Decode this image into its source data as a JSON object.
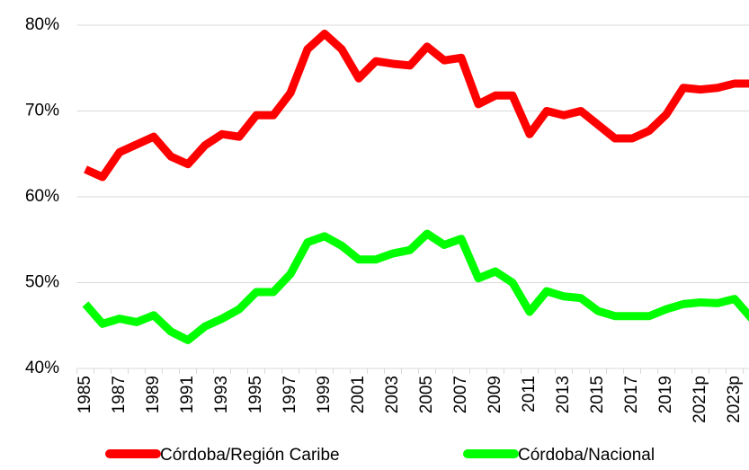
{
  "chart_data": {
    "type": "line",
    "categories": [
      "1985",
      null,
      "1987",
      null,
      "1989",
      null,
      "1991",
      null,
      "1993",
      null,
      "1995",
      null,
      "1997",
      null,
      "1999",
      null,
      "2001",
      null,
      "2003",
      null,
      "2005",
      null,
      "2007",
      null,
      "2009",
      null,
      "2011",
      null,
      "2013",
      null,
      "2015",
      null,
      "2017",
      null,
      "2019",
      null,
      "2021p",
      null,
      "2023p",
      null
    ],
    "series": [
      {
        "name": "Córdoba/Región Caribe",
        "color": "#ff0000",
        "values": [
          63.2,
          62.3,
          65.2,
          66.1,
          67.0,
          64.7,
          63.8,
          66.0,
          67.3,
          67.0,
          69.5,
          69.5,
          72.1,
          77.2,
          79.0,
          77.2,
          73.8,
          75.8,
          75.5,
          75.3,
          77.5,
          75.9,
          76.2,
          70.8,
          71.8,
          71.8,
          67.3,
          70.0,
          69.5,
          70.0,
          68.4,
          66.8,
          66.8,
          67.7,
          69.6,
          72.7,
          72.5,
          72.7,
          73.2,
          73.2
        ]
      },
      {
        "name": "Córdoba/Nacional",
        "color": "#00ff00",
        "values": [
          47.5,
          45.2,
          45.8,
          45.4,
          46.2,
          44.3,
          43.3,
          44.9,
          45.8,
          46.9,
          48.9,
          48.9,
          51.0,
          54.7,
          55.4,
          54.3,
          52.7,
          52.7,
          53.4,
          53.8,
          55.7,
          54.4,
          55.1,
          50.5,
          51.3,
          50.0,
          46.6,
          49.0,
          48.4,
          48.2,
          46.7,
          46.1,
          46.1,
          46.1,
          46.9,
          47.5,
          47.7,
          47.6,
          48.1,
          45.8
        ]
      }
    ],
    "ylim": [
      40,
      80
    ],
    "yticks": [
      {
        "value": 40,
        "label": "40%"
      },
      {
        "value": 50,
        "label": "50%"
      },
      {
        "value": 60,
        "label": "60%"
      },
      {
        "value": 70,
        "label": "70%"
      },
      {
        "value": 80,
        "label": "80%"
      }
    ],
    "grid": true,
    "legend": "bottom"
  }
}
